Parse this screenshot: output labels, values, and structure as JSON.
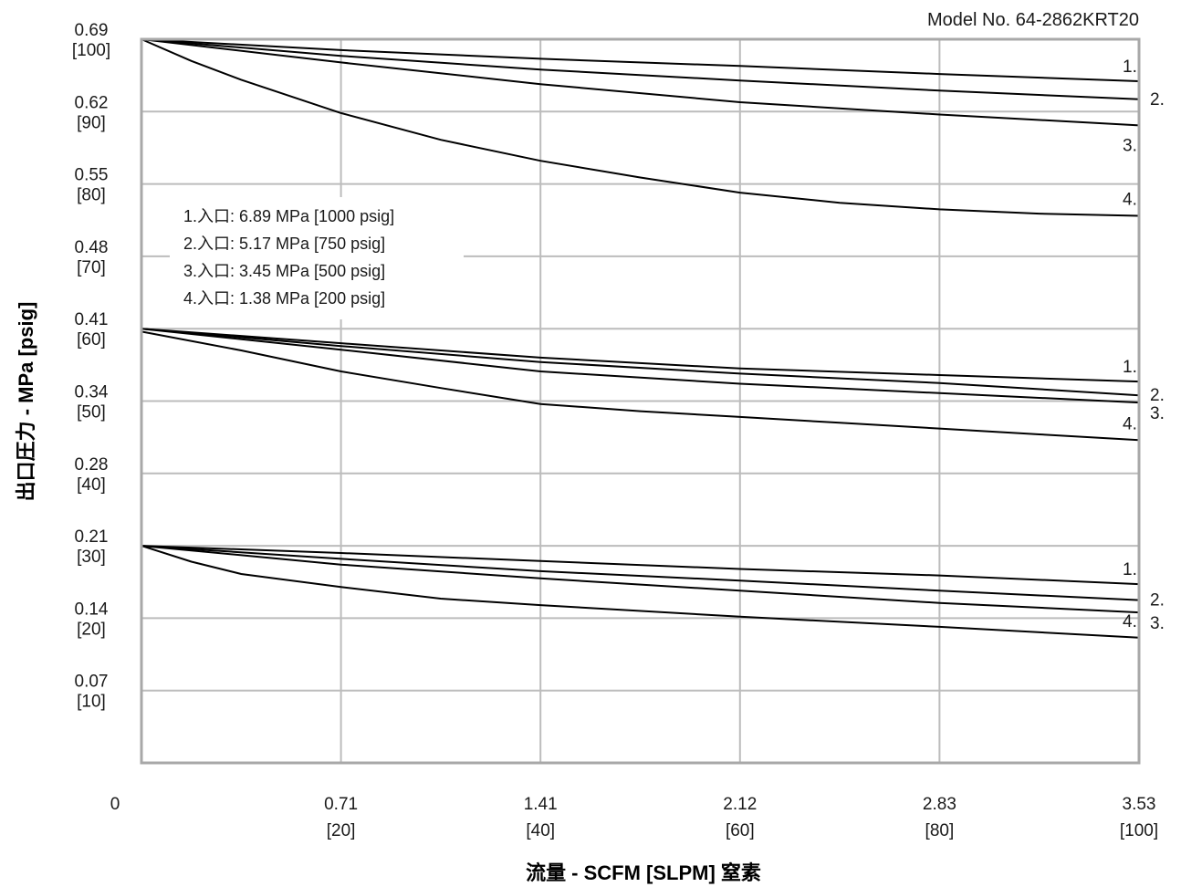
{
  "chart_data": {
    "type": "line",
    "title": "Model No. 64-2862KRT20",
    "xlabel": "流量 - SCFM [SLPM] 窒素",
    "ylabel": "出口圧力 - MPa [psig]",
    "x_origin_label": "0",
    "x_ticks": [
      {
        "value": 20,
        "top": "0.71",
        "bottom": "[20]"
      },
      {
        "value": 40,
        "top": "1.41",
        "bottom": "[40]"
      },
      {
        "value": 60,
        "top": "2.12",
        "bottom": "[60]"
      },
      {
        "value": 80,
        "top": "2.83",
        "bottom": "[80]"
      },
      {
        "value": 100,
        "top": "3.53",
        "bottom": "[100]"
      }
    ],
    "y_ticks": [
      {
        "value": 100,
        "top": "0.69",
        "bottom": "[100]"
      },
      {
        "value": 90,
        "top": "0.62",
        "bottom": "[90]"
      },
      {
        "value": 80,
        "top": "0.55",
        "bottom": "[80]"
      },
      {
        "value": 70,
        "top": "0.48",
        "bottom": "[70]"
      },
      {
        "value": 60,
        "top": "0.41",
        "bottom": "[60]"
      },
      {
        "value": 50,
        "top": "0.34",
        "bottom": "[50]"
      },
      {
        "value": 40,
        "top": "0.28",
        "bottom": "[40]"
      },
      {
        "value": 30,
        "top": "0.21",
        "bottom": "[30]"
      },
      {
        "value": 20,
        "top": "0.14",
        "bottom": "[20]"
      },
      {
        "value": 10,
        "top": "0.07",
        "bottom": "[10]"
      }
    ],
    "xlim": [
      0,
      100
    ],
    "ylim": [
      0,
      100
    ],
    "grid": true,
    "legend": [
      "1.入口: 6.89 MPa [1000 psig]",
      "2.入口: 5.17 MPa [750 psig]",
      "3.入口: 3.45 MPa [500 psig]",
      "4.入口: 1.38 MPa [200 psig]"
    ],
    "legend_placement": "upper-left",
    "groups": [
      {
        "setpoint_psig": 100,
        "series": [
          {
            "name": "1.",
            "x": [
              0,
              20,
              40,
              60,
              80,
              100
            ],
            "y": [
              100,
              98.5,
              97.3,
              96.3,
              95.2,
              94.2
            ]
          },
          {
            "name": "2.",
            "x": [
              0,
              20,
              40,
              60,
              80,
              100
            ],
            "y": [
              100,
              97.7,
              95.8,
              94.3,
              92.9,
              91.7
            ]
          },
          {
            "name": "3.",
            "x": [
              0,
              20,
              40,
              60,
              80,
              100
            ],
            "y": [
              100,
              96.8,
              93.8,
              91.3,
              89.6,
              88.1
            ]
          },
          {
            "name": "4.",
            "x": [
              0,
              5,
              10,
              20,
              30,
              40,
              50,
              60,
              70,
              80,
              90,
              100
            ],
            "y": [
              100,
              97.0,
              94.4,
              89.8,
              86.1,
              83.2,
              80.9,
              78.8,
              77.4,
              76.5,
              75.9,
              75.6
            ]
          }
        ]
      },
      {
        "setpoint_psig": 60,
        "series": [
          {
            "name": "1.",
            "x": [
              0,
              20,
              40,
              60,
              80,
              100
            ],
            "y": [
              60,
              58.0,
              56.0,
              54.5,
              53.6,
              52.7
            ]
          },
          {
            "name": "2.",
            "x": [
              0,
              20,
              40,
              60,
              80,
              100
            ],
            "y": [
              60,
              57.6,
              55.4,
              53.8,
              52.5,
              50.8
            ]
          },
          {
            "name": "3.",
            "x": [
              0,
              20,
              40,
              60,
              80,
              100
            ],
            "y": [
              60,
              57.1,
              54.1,
              52.4,
              51.1,
              49.8
            ]
          },
          {
            "name": "4.",
            "x": [
              0,
              10,
              20,
              30,
              40,
              50,
              60,
              70,
              80,
              90,
              100
            ],
            "y": [
              59.6,
              57.0,
              54.1,
              51.8,
              49.6,
              48.6,
              47.8,
              47.0,
              46.2,
              45.4,
              44.6
            ]
          }
        ]
      },
      {
        "setpoint_psig": 30,
        "series": [
          {
            "name": "1.",
            "x": [
              0,
              20,
              40,
              60,
              80,
              100
            ],
            "y": [
              30,
              29.0,
              27.9,
              26.8,
              25.9,
              24.7
            ]
          },
          {
            "name": "2.",
            "x": [
              0,
              20,
              40,
              60,
              80,
              100
            ],
            "y": [
              30,
              28.2,
              26.5,
              25.2,
              23.8,
              22.5
            ]
          },
          {
            "name": "3.",
            "x": [
              0,
              20,
              40,
              60,
              80,
              100
            ],
            "y": [
              30,
              27.4,
              25.5,
              23.8,
              22.1,
              20.8
            ]
          },
          {
            "name": "4.",
            "x": [
              0,
              5,
              10,
              20,
              30,
              40,
              60,
              80,
              100
            ],
            "y": [
              30,
              27.8,
              26.1,
              24.3,
              22.7,
              21.8,
              20.2,
              18.8,
              17.3
            ]
          }
        ]
      }
    ]
  }
}
